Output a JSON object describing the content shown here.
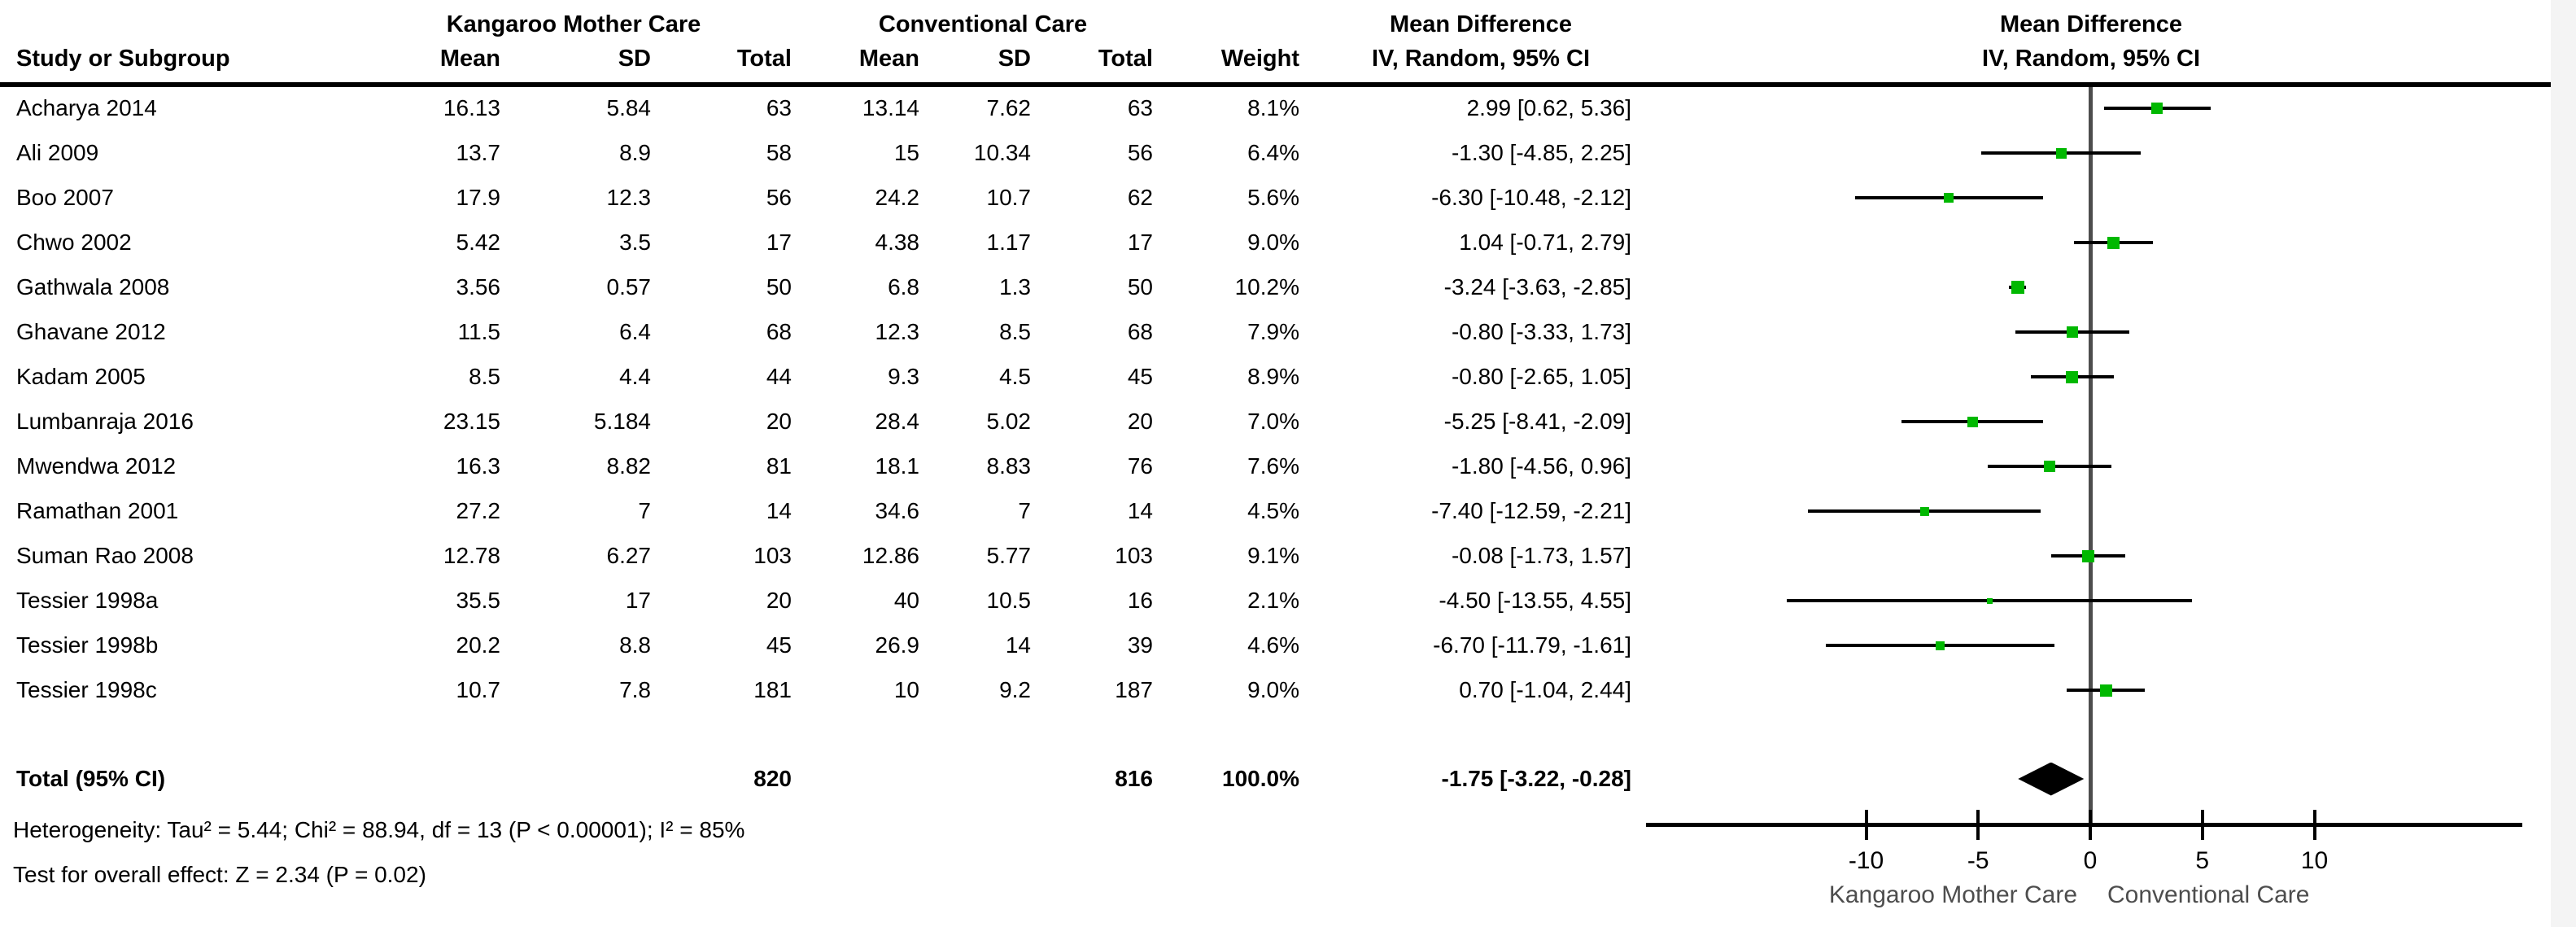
{
  "figure": {
    "columns": {
      "study": "Study or Subgroup",
      "mean": "Mean",
      "sd": "SD",
      "total": "Total",
      "weight": "Weight"
    },
    "footer": {
      "heterogeneity": "Heterogeneity: Tau² = 5.44; Chi² = 88.94, df = 13 (P < 0.00001); I² = 85%",
      "overall_effect": "Test for overall effect: Z = 2.34 (P = 0.02)"
    },
    "colors": {
      "marker_green": "#00b800",
      "diamond_black": "#000000",
      "zero_line_gray": "#4d4d4d"
    }
  },
  "chart_data": {
    "type": "forest",
    "group1_label": "Kangaroo Mother Care",
    "group2_label": "Conventional Care",
    "effect_header_line1": "Mean Difference",
    "effect_header_line2": "IV, Random, 95% CI",
    "plot_header_line1": "Mean Difference",
    "plot_header_line2": "IV, Random, 95% CI",
    "x_ticks": [
      -10,
      -5,
      0,
      5,
      10
    ],
    "axis_left_label": "Kangaroo Mother Care",
    "axis_right_label": "Conventional Care",
    "studies": [
      {
        "study": "Acharya 2014",
        "mean1": "16.13",
        "sd1": "5.84",
        "total1": "63",
        "mean2": "13.14",
        "sd2": "7.62",
        "total2": "63",
        "weight": "8.1%",
        "weight_pct": 8.1,
        "md": 2.99,
        "ci_lower": 0.62,
        "ci_upper": 5.36,
        "ci_text": "2.99 [0.62, 5.36]"
      },
      {
        "study": "Ali 2009",
        "mean1": "13.7",
        "sd1": "8.9",
        "total1": "58",
        "mean2": "15",
        "sd2": "10.34",
        "total2": "56",
        "weight": "6.4%",
        "weight_pct": 6.4,
        "md": -1.3,
        "ci_lower": -4.85,
        "ci_upper": 2.25,
        "ci_text": "-1.30 [-4.85, 2.25]"
      },
      {
        "study": "Boo 2007",
        "mean1": "17.9",
        "sd1": "12.3",
        "total1": "56",
        "mean2": "24.2",
        "sd2": "10.7",
        "total2": "62",
        "weight": "5.6%",
        "weight_pct": 5.6,
        "md": -6.3,
        "ci_lower": -10.48,
        "ci_upper": -2.12,
        "ci_text": "-6.30 [-10.48, -2.12]"
      },
      {
        "study": "Chwo 2002",
        "mean1": "5.42",
        "sd1": "3.5",
        "total1": "17",
        "mean2": "4.38",
        "sd2": "1.17",
        "total2": "17",
        "weight": "9.0%",
        "weight_pct": 9.0,
        "md": 1.04,
        "ci_lower": -0.71,
        "ci_upper": 2.79,
        "ci_text": "1.04 [-0.71, 2.79]"
      },
      {
        "study": "Gathwala 2008",
        "mean1": "3.56",
        "sd1": "0.57",
        "total1": "50",
        "mean2": "6.8",
        "sd2": "1.3",
        "total2": "50",
        "weight": "10.2%",
        "weight_pct": 10.2,
        "md": -3.24,
        "ci_lower": -3.63,
        "ci_upper": -2.85,
        "ci_text": "-3.24 [-3.63, -2.85]"
      },
      {
        "study": "Ghavane 2012",
        "mean1": "11.5",
        "sd1": "6.4",
        "total1": "68",
        "mean2": "12.3",
        "sd2": "8.5",
        "total2": "68",
        "weight": "7.9%",
        "weight_pct": 7.9,
        "md": -0.8,
        "ci_lower": -3.33,
        "ci_upper": 1.73,
        "ci_text": "-0.80 [-3.33, 1.73]"
      },
      {
        "study": "Kadam 2005",
        "mean1": "8.5",
        "sd1": "4.4",
        "total1": "44",
        "mean2": "9.3",
        "sd2": "4.5",
        "total2": "45",
        "weight": "8.9%",
        "weight_pct": 8.9,
        "md": -0.8,
        "ci_lower": -2.65,
        "ci_upper": 1.05,
        "ci_text": "-0.80 [-2.65, 1.05]"
      },
      {
        "study": "Lumbanraja 2016",
        "mean1": "23.15",
        "sd1": "5.184",
        "total1": "20",
        "mean2": "28.4",
        "sd2": "5.02",
        "total2": "20",
        "weight": "7.0%",
        "weight_pct": 7.0,
        "md": -5.25,
        "ci_lower": -8.41,
        "ci_upper": -2.09,
        "ci_text": "-5.25 [-8.41, -2.09]"
      },
      {
        "study": "Mwendwa 2012",
        "mean1": "16.3",
        "sd1": "8.82",
        "total1": "81",
        "mean2": "18.1",
        "sd2": "8.83",
        "total2": "76",
        "weight": "7.6%",
        "weight_pct": 7.6,
        "md": -1.8,
        "ci_lower": -4.56,
        "ci_upper": 0.96,
        "ci_text": "-1.80 [-4.56, 0.96]"
      },
      {
        "study": "Ramathan 2001",
        "mean1": "27.2",
        "sd1": "7",
        "total1": "14",
        "mean2": "34.6",
        "sd2": "7",
        "total2": "14",
        "weight": "4.5%",
        "weight_pct": 4.5,
        "md": -7.4,
        "ci_lower": -12.59,
        "ci_upper": -2.21,
        "ci_text": "-7.40 [-12.59, -2.21]"
      },
      {
        "study": "Suman Rao 2008",
        "mean1": "12.78",
        "sd1": "6.27",
        "total1": "103",
        "mean2": "12.86",
        "sd2": "5.77",
        "total2": "103",
        "weight": "9.1%",
        "weight_pct": 9.1,
        "md": -0.08,
        "ci_lower": -1.73,
        "ci_upper": 1.57,
        "ci_text": "-0.08 [-1.73, 1.57]"
      },
      {
        "study": "Tessier 1998a",
        "mean1": "35.5",
        "sd1": "17",
        "total1": "20",
        "mean2": "40",
        "sd2": "10.5",
        "total2": "16",
        "weight": "2.1%",
        "weight_pct": 2.1,
        "md": -4.5,
        "ci_lower": -13.55,
        "ci_upper": 4.55,
        "ci_text": "-4.50 [-13.55, 4.55]"
      },
      {
        "study": "Tessier 1998b",
        "mean1": "20.2",
        "sd1": "8.8",
        "total1": "45",
        "mean2": "26.9",
        "sd2": "14",
        "total2": "39",
        "weight": "4.6%",
        "weight_pct": 4.6,
        "md": -6.7,
        "ci_lower": -11.79,
        "ci_upper": -1.61,
        "ci_text": "-6.70 [-11.79, -1.61]"
      },
      {
        "study": "Tessier 1998c",
        "mean1": "10.7",
        "sd1": "7.8",
        "total1": "181",
        "mean2": "10",
        "sd2": "9.2",
        "total2": "187",
        "weight": "9.0%",
        "weight_pct": 9.0,
        "md": 0.7,
        "ci_lower": -1.04,
        "ci_upper": 2.44,
        "ci_text": "0.70 [-1.04, 2.44]"
      }
    ],
    "total": {
      "label": "Total (95% CI)",
      "total1": "820",
      "total2": "816",
      "weight": "100.0%",
      "weight_pct": 100.0,
      "md": -1.75,
      "ci_lower": -3.22,
      "ci_upper": -0.28,
      "ci_text": "-1.75 [-3.22, -0.28]"
    }
  }
}
